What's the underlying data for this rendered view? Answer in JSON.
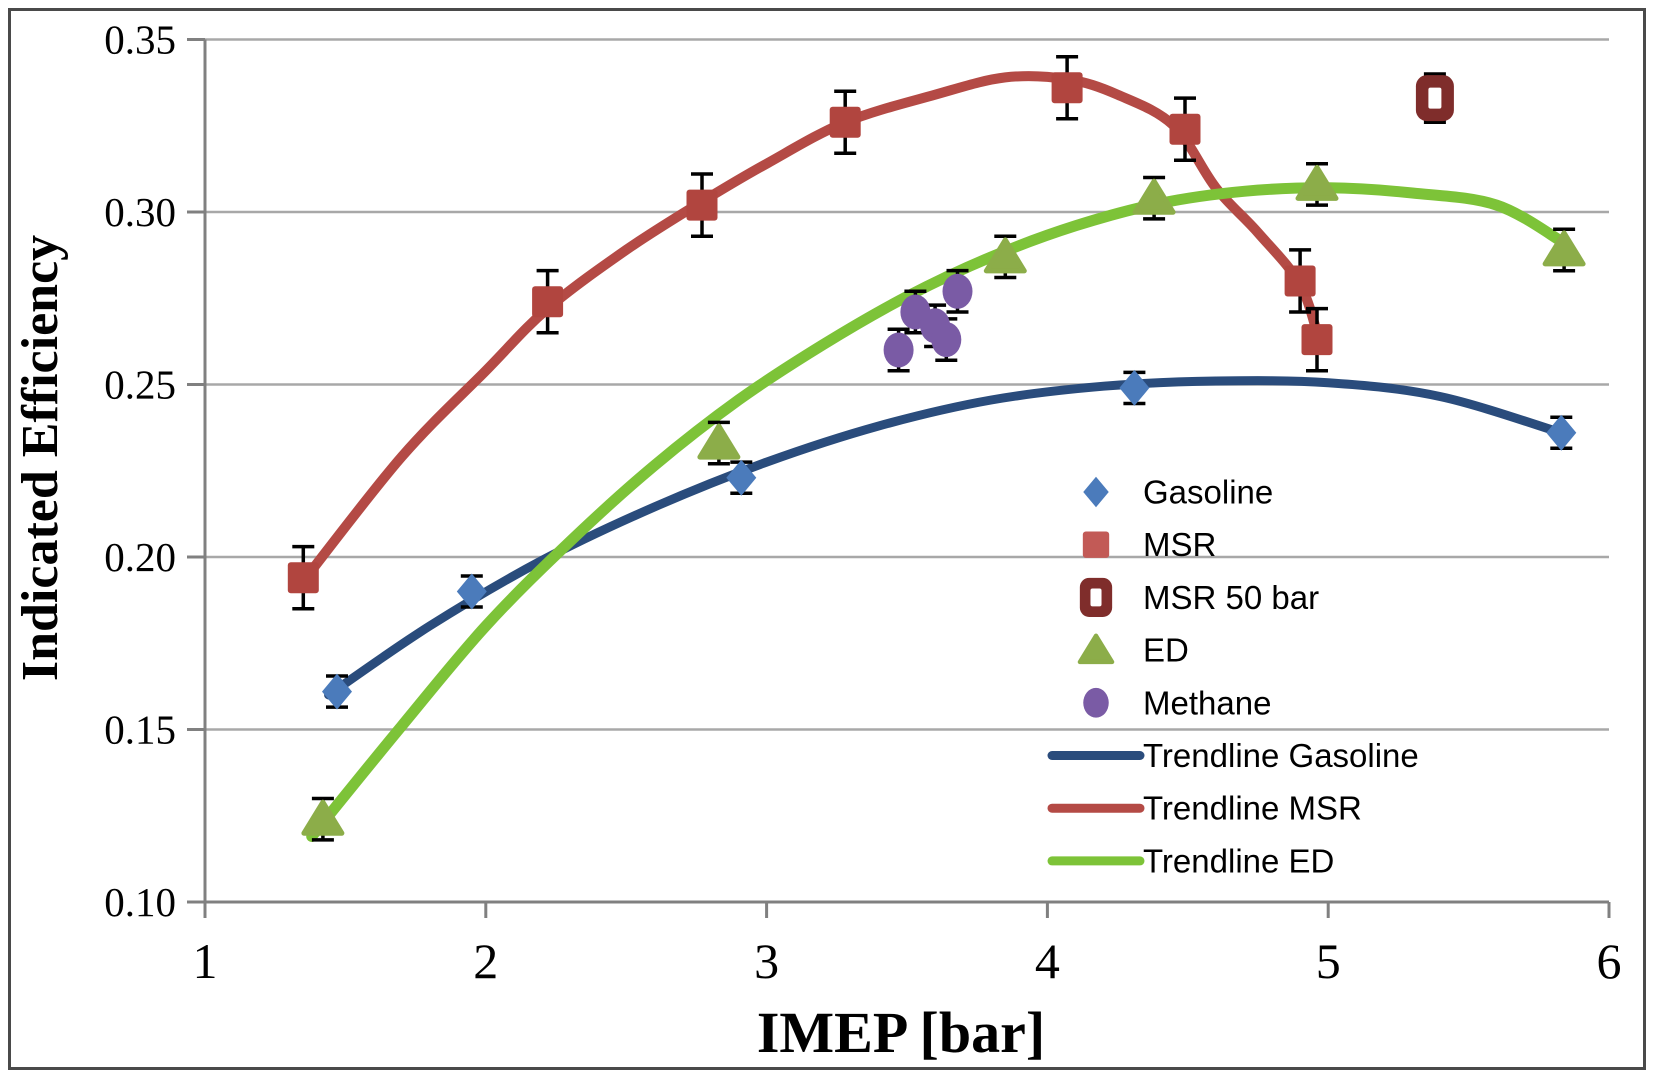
{
  "chart_data": {
    "type": "scatter",
    "title": "",
    "xlabel": "IMEP [bar]",
    "ylabel": "Indicated Efficiency",
    "xlim": [
      1,
      6
    ],
    "ylim": [
      0.1,
      0.35
    ],
    "xticks": [
      1,
      2,
      3,
      4,
      5,
      6
    ],
    "xtick_labels": [
      "1",
      "2",
      "3",
      "4",
      "5",
      "6"
    ],
    "yticks": [
      0.1,
      0.15,
      0.2,
      0.25,
      0.3,
      0.35
    ],
    "ytick_labels": [
      "0.10",
      "0.15",
      "0.20",
      "0.25",
      "0.30",
      "0.35"
    ],
    "grid": true,
    "legend_position": "inside-right",
    "legend": [
      "Gasoline",
      "MSR",
      "MSR 50 bar",
      "ED",
      "Methane",
      "Trendline Gasoline",
      "Trendline MSR",
      "Trendline ED"
    ],
    "series": [
      {
        "name": "Gasoline",
        "marker": "diamond",
        "color": "#4b7bbb",
        "error": 0.0045,
        "points": [
          [
            1.47,
            0.161
          ],
          [
            1.95,
            0.19
          ],
          [
            2.91,
            0.223
          ],
          [
            4.31,
            0.249
          ],
          [
            5.83,
            0.236
          ]
        ]
      },
      {
        "name": "MSR",
        "marker": "square",
        "color": "#b1453f",
        "legend_color": "#c25a56",
        "error": 0.009,
        "points": [
          [
            1.35,
            0.194
          ],
          [
            2.22,
            0.274
          ],
          [
            2.77,
            0.302
          ],
          [
            3.28,
            0.326
          ],
          [
            4.07,
            0.336
          ],
          [
            4.49,
            0.324
          ],
          [
            4.9,
            0.28
          ],
          [
            4.96,
            0.263
          ]
        ]
      },
      {
        "name": "MSR 50 bar",
        "marker": "open-square",
        "color": "#7f2d2b",
        "error": 0.007,
        "points": [
          [
            5.38,
            0.333
          ]
        ]
      },
      {
        "name": "ED",
        "marker": "triangle",
        "color": "#8cad49",
        "error": 0.006,
        "points": [
          [
            1.42,
            0.124
          ],
          [
            2.83,
            0.233
          ],
          [
            3.85,
            0.287
          ],
          [
            4.38,
            0.304
          ],
          [
            4.96,
            0.308
          ],
          [
            5.84,
            0.289
          ]
        ]
      },
      {
        "name": "Methane",
        "marker": "circle",
        "color": "#7a5ba5",
        "error": 0.006,
        "points": [
          [
            3.47,
            0.26
          ],
          [
            3.53,
            0.271
          ],
          [
            3.6,
            0.267
          ],
          [
            3.64,
            0.263
          ],
          [
            3.68,
            0.277
          ]
        ]
      }
    ],
    "trendlines": [
      {
        "name": "Trendline Gasoline",
        "color": "#2a4c7c",
        "width": 9,
        "points": [
          [
            1.44,
            0.16
          ],
          [
            1.8,
            0.18
          ],
          [
            2.2,
            0.199
          ],
          [
            2.6,
            0.2145
          ],
          [
            3.0,
            0.2275
          ],
          [
            3.4,
            0.238
          ],
          [
            3.8,
            0.2455
          ],
          [
            4.2,
            0.2495
          ],
          [
            4.6,
            0.251
          ],
          [
            5.0,
            0.2505
          ],
          [
            5.4,
            0.2465
          ],
          [
            5.83,
            0.236
          ]
        ]
      },
      {
        "name": "Trendline MSR",
        "color": "#b44a45",
        "width": 10,
        "points": [
          [
            1.35,
            0.193
          ],
          [
            1.7,
            0.229
          ],
          [
            2.0,
            0.254
          ],
          [
            2.22,
            0.272
          ],
          [
            2.5,
            0.289
          ],
          [
            2.77,
            0.303
          ],
          [
            3.0,
            0.314
          ],
          [
            3.28,
            0.326
          ],
          [
            3.6,
            0.334
          ],
          [
            3.85,
            0.339
          ],
          [
            4.07,
            0.3385
          ],
          [
            4.25,
            0.334
          ],
          [
            4.45,
            0.325
          ],
          [
            4.6,
            0.307
          ],
          [
            4.75,
            0.294
          ],
          [
            4.9,
            0.279
          ],
          [
            4.97,
            0.262
          ]
        ]
      },
      {
        "name": "Trendline ED",
        "color": "#7dc338",
        "width": 11,
        "points": [
          [
            1.38,
            0.119
          ],
          [
            1.7,
            0.151
          ],
          [
            2.0,
            0.18
          ],
          [
            2.3,
            0.2045
          ],
          [
            2.6,
            0.2265
          ],
          [
            2.9,
            0.2455
          ],
          [
            3.2,
            0.2615
          ],
          [
            3.5,
            0.2755
          ],
          [
            3.8,
            0.287
          ],
          [
            4.1,
            0.296
          ],
          [
            4.4,
            0.3025
          ],
          [
            4.7,
            0.306
          ],
          [
            5.0,
            0.307
          ],
          [
            5.3,
            0.3055
          ],
          [
            5.6,
            0.302
          ],
          [
            5.84,
            0.291
          ]
        ]
      }
    ],
    "style": {
      "gridline_color": "#a8a8a8",
      "axis_color": "#808080",
      "error_bar_color": "#000000",
      "frame_color": "#4a4a4a",
      "text_color": "#000000"
    }
  }
}
